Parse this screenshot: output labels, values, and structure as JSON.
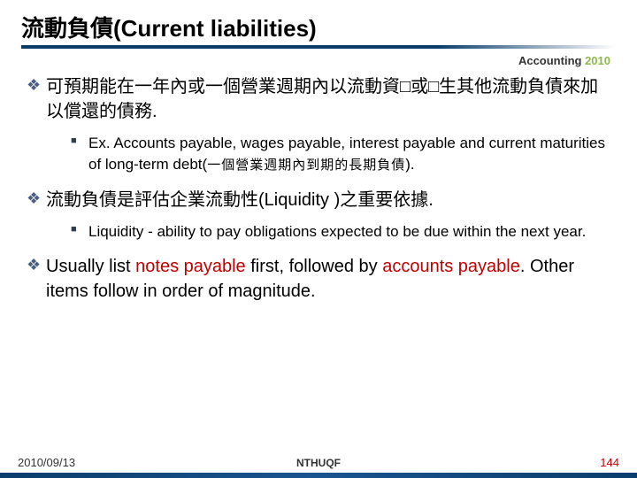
{
  "title": "流動負債(Current liabilities)",
  "course": {
    "name": "Accounting",
    "year": "2010"
  },
  "items": [
    {
      "text": "可預期能在一年內或一個營業週期內以流動資□或□生其他流動負債來加以償還的債務.",
      "sub": [
        {
          "text_pre": "Ex. Accounts payable, wages payable, interest payable and current maturities of long-term debt(",
          "text_cjk": "一個營業週期內到期的長期負債",
          "text_post": ")."
        }
      ]
    },
    {
      "text": "流動負債是評估企業流動性(Liquidity )之重要依據.",
      "sub": [
        {
          "text_plain": "Liquidity - ability to pay obligations expected to be due within the next year."
        }
      ]
    },
    {
      "text_parts": [
        "Usually list ",
        "notes payable",
        " first, followed by ",
        "accounts payable",
        ".  Other items follow in order of magnitude."
      ],
      "keywords_idx": [
        1,
        3
      ],
      "sub": []
    }
  ],
  "footer": {
    "date": "2010/09/13",
    "center": "NTHUQF",
    "page": "144"
  },
  "colors": {
    "title_bar": "#0a3d6b",
    "year": "#8fb84a",
    "keyword": "#c00000",
    "bullet_l1": "#4a5f80"
  }
}
